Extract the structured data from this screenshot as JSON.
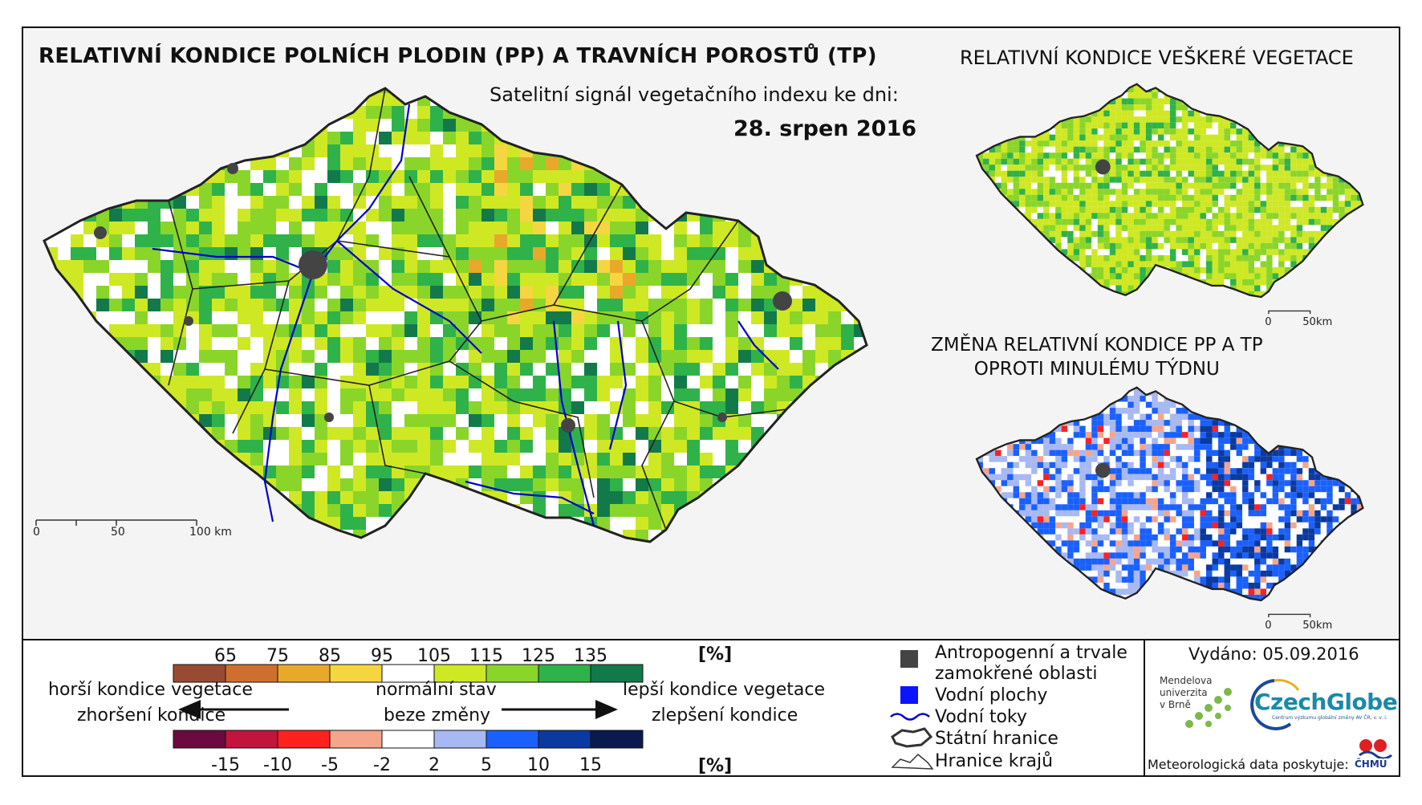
{
  "header": {
    "main_title": "RELATIVNÍ KONDICE POLNÍCH PLODIN (PP) A TRAVNÍCH POROSTŮ (TP)",
    "subtitle": "Satelitní signál vegetačního indexu ke dni:",
    "date": "28. srpen 2016"
  },
  "inset_vegetation": {
    "title": "RELATIVNÍ KONDICE VEŠKERÉ VEGETACE",
    "scale": [
      "0",
      "50km"
    ]
  },
  "inset_change": {
    "title_line1": "ZMĚNA RELATIVNÍ KONDICE PP A TP",
    "title_line2": "OPROTI MINULÉMU TÝDNU",
    "scale": [
      "0",
      "50km"
    ]
  },
  "main_map": {
    "scale": [
      "0",
      "50",
      "100 km"
    ]
  },
  "colors": {
    "condition": [
      "#9a4a33",
      "#cf6f2e",
      "#e8a92a",
      "#f5d640",
      "#ffffff",
      "#cfe824",
      "#8ad52a",
      "#2fb24a",
      "#127a4a"
    ],
    "change": [
      "#6a0a40",
      "#c2143c",
      "#ff2020",
      "#f5a58a",
      "#ffffff",
      "#a7b8f2",
      "#1a60ff",
      "#0a3aa0",
      "#0a1a50"
    ],
    "anthropogenic": "#444444",
    "water_body": "#0000ff",
    "river": "#0000cc"
  },
  "legend": {
    "condition_ticks": [
      "65",
      "75",
      "85",
      "95",
      "105",
      "115",
      "125",
      "135"
    ],
    "condition_unit": "[%]",
    "change_ticks": [
      "-15",
      "-10",
      "-5",
      "-2",
      "2",
      "5",
      "10",
      "15"
    ],
    "change_unit": "[%]",
    "worse_1": "horší kondice vegetace",
    "worse_2": "zhoršení kondice",
    "normal_1": "normální stav",
    "normal_2": "beze změny",
    "better_1": "lepší kondice vegetace",
    "better_2": "zlepšení kondice",
    "symbols": [
      {
        "icon": "dark-square-icon",
        "label_1": "Antropogenní a trvale",
        "label_2": "zamokřené oblasti"
      },
      {
        "icon": "blue-square-icon",
        "label_1": "Vodní plochy"
      },
      {
        "icon": "river-line-icon",
        "label_1": "Vodní toky"
      },
      {
        "icon": "state-border-icon",
        "label_1": "Státní hranice"
      },
      {
        "icon": "region-border-icon",
        "label_1": "Hranice krajů"
      }
    ]
  },
  "footer": {
    "issued": "Vydáno: 05.09.2016",
    "mendel_1": "Mendelova",
    "mendel_2": "univerzita",
    "mendel_3": "v Brně",
    "czechglobe": "CzechGlobe",
    "czechglobe_sub": "Centrum výzkumu globální změny AV ČR, v. v. i.",
    "meteo": "Meteorologická data poskytuje:",
    "chmu": "ČHMÚ"
  }
}
